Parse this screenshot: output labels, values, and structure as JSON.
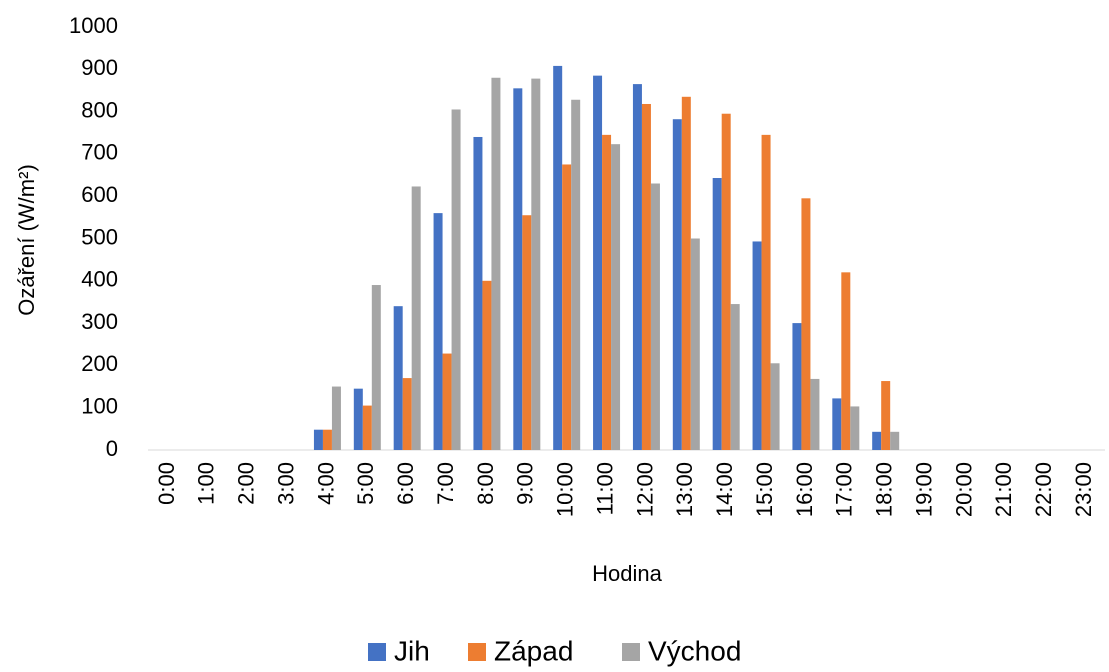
{
  "chart_data": {
    "type": "bar",
    "y_label": "Ozáření (W/m²)",
    "x_label": "Hodina",
    "categories": [
      "0:00",
      "1:00",
      "2:00",
      "3:00",
      "4:00",
      "5:00",
      "6:00",
      "7:00",
      "8:00",
      "9:00",
      "10:00",
      "11:00",
      "12:00",
      "13:00",
      "14:00",
      "15:00",
      "16:00",
      "17:00",
      "18:00",
      "19:00",
      "20:00",
      "21:00",
      "22:00",
      "23:00"
    ],
    "series": [
      {
        "name": "Jih",
        "color": "#4472c4",
        "values": [
          0,
          0,
          0,
          0,
          48,
          145,
          340,
          560,
          740,
          855,
          908,
          885,
          865,
          782,
          643,
          493,
          300,
          122,
          43,
          0,
          0,
          0,
          0,
          0
        ]
      },
      {
        "name": "Západ",
        "color": "#ed7d31",
        "values": [
          0,
          0,
          0,
          0,
          48,
          105,
          170,
          228,
          400,
          555,
          675,
          745,
          818,
          835,
          795,
          745,
          595,
          420,
          163,
          0,
          0,
          0,
          0,
          0
        ]
      },
      {
        "name": "Východ",
        "color": "#a5a5a5",
        "values": [
          0,
          0,
          0,
          0,
          150,
          390,
          623,
          805,
          880,
          878,
          828,
          723,
          630,
          500,
          345,
          205,
          168,
          103,
          43,
          0,
          0,
          0,
          0,
          0
        ]
      }
    ],
    "ylim": [
      0,
      1000
    ],
    "yticks": [
      0,
      100,
      200,
      300,
      400,
      500,
      600,
      700,
      800,
      900,
      1000
    ],
    "grid": false,
    "legend": "bottom"
  }
}
